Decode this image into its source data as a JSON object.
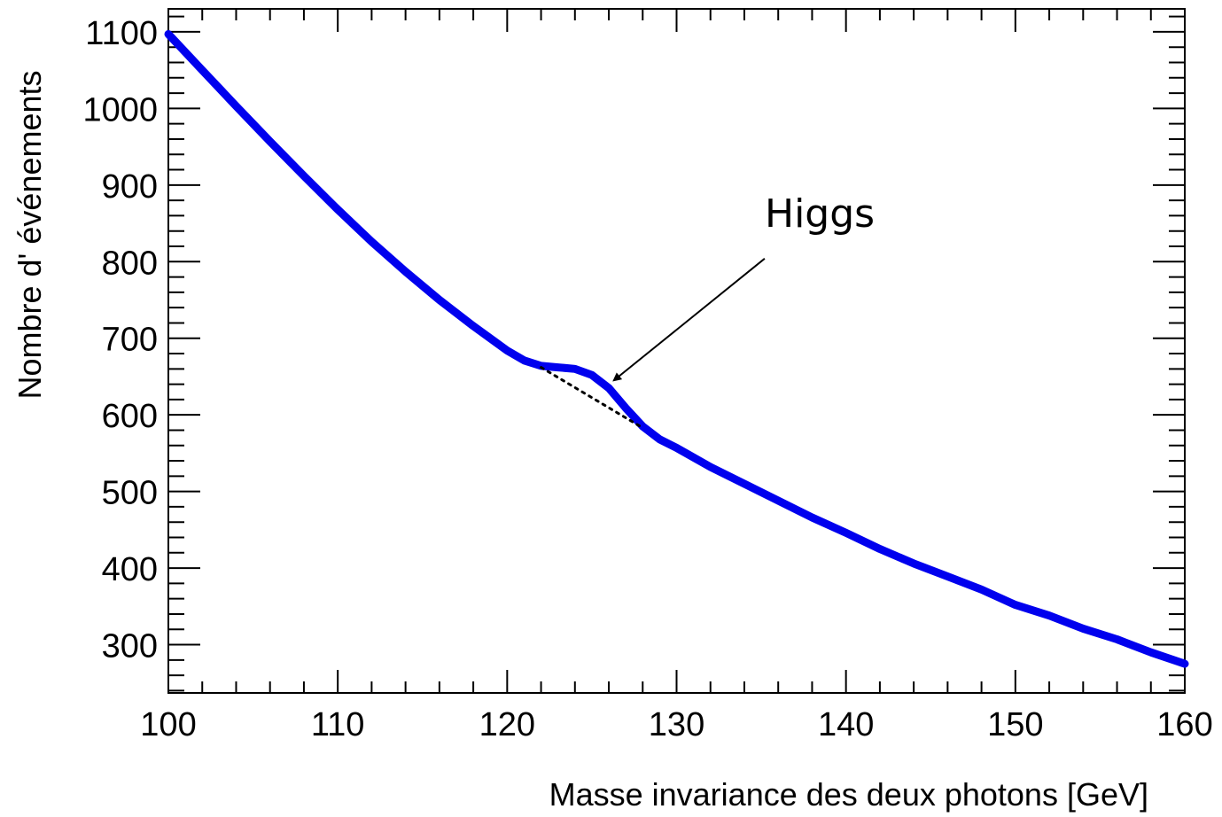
{
  "chart_data": {
    "type": "line",
    "title": "",
    "xlabel": "Masse invariance des deux photons [GeV]",
    "ylabel": "Nombre d' événements",
    "xlim": [
      100,
      160
    ],
    "ylim": [
      237,
      1130
    ],
    "x_ticks": [
      100,
      110,
      120,
      130,
      140,
      150,
      160
    ],
    "y_ticks": [
      300,
      400,
      500,
      600,
      700,
      800,
      900,
      1000,
      1100
    ],
    "x_tick_labels": [
      "100",
      "110",
      "120",
      "130",
      "140",
      "150",
      "160"
    ],
    "y_tick_labels": [
      "300",
      "400",
      "500",
      "600",
      "700",
      "800",
      "900",
      "1000",
      "1100"
    ],
    "grid": false,
    "series": [
      {
        "color": "#0000ee",
        "x": [
          100,
          102,
          104,
          106,
          108,
          110,
          112,
          114,
          116,
          118,
          120,
          121,
          122,
          123,
          124,
          125,
          126,
          127,
          128,
          129,
          130,
          132,
          134,
          136,
          138,
          140,
          142,
          144,
          146,
          148,
          150,
          152,
          154,
          156,
          158,
          160
        ],
        "y": [
          1097,
          1050,
          1003,
          957,
          912,
          868,
          826,
          787,
          750,
          716,
          684,
          671,
          664,
          662,
          660,
          652,
          635,
          609,
          585,
          568,
          557,
          532,
          510,
          488,
          466,
          446,
          425,
          406,
          389,
          372,
          352,
          338,
          321,
          307,
          290,
          275
        ]
      },
      {
        "color": "#000000",
        "dash": "dotted",
        "x": [
          122,
          128
        ],
        "y": [
          662,
          583
        ]
      }
    ],
    "annotations": [
      {
        "text": "Higgs",
        "arrow_from": [
          135.2,
          804
        ],
        "arrow_to": [
          126.3,
          645
        ]
      }
    ]
  }
}
